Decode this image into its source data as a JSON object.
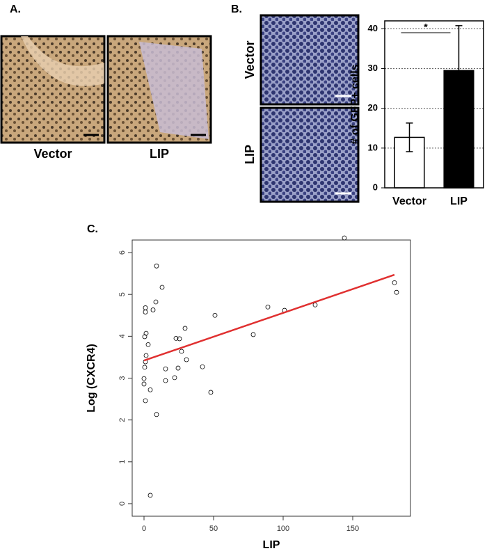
{
  "panel_a": {
    "label": "A.",
    "images": [
      "Vector",
      "LIP"
    ]
  },
  "panel_b": {
    "label": "B.",
    "images": [
      "Vector",
      "LIP"
    ]
  },
  "panel_c": {
    "label": "C."
  },
  "chart_data": [
    {
      "type": "bar",
      "ylabel": "# of GFP+ cells",
      "categories": [
        "Vector",
        "LIP"
      ],
      "values": [
        12.7,
        29.5
      ],
      "errors": [
        3.6,
        11.3
      ],
      "colors": [
        "#ffffff",
        "#000000"
      ],
      "ylim": [
        0,
        42
      ],
      "yticks": [
        0,
        10,
        20,
        30,
        40
      ],
      "grid": true,
      "annotation": "*"
    },
    {
      "type": "scatter",
      "xlabel": "LIP",
      "ylabel": "Log (CXCR4)",
      "x": [
        1,
        1,
        1.5,
        0.5,
        3,
        1.5,
        1,
        0.5,
        0,
        0,
        1,
        4.5,
        9,
        4.5,
        9,
        13,
        8.5,
        6.5,
        15.5,
        15.5,
        22,
        24.5,
        23,
        25.5,
        27,
        30.5,
        29.5,
        42,
        48,
        51,
        78.5,
        89,
        101,
        123,
        144,
        180,
        181.5
      ],
      "values": [
        4.68,
        4.58,
        4.07,
        3.99,
        3.8,
        3.54,
        3.39,
        3.26,
        2.99,
        2.86,
        2.46,
        2.72,
        2.13,
        0.2,
        5.68,
        5.17,
        4.82,
        4.63,
        3.22,
        2.94,
        3.01,
        3.24,
        3.95,
        3.94,
        3.64,
        3.44,
        4.19,
        3.27,
        2.66,
        4.5,
        4.04,
        4.7,
        4.62,
        4.75,
        6.35,
        5.28,
        5.05
      ],
      "fit": {
        "x": [
          0,
          180
        ],
        "values": [
          3.42,
          5.47
        ],
        "color": "#e03030"
      },
      "xlim": [
        -8.5,
        191.5
      ],
      "ylim": [
        -0.3,
        6.3
      ],
      "xticks": [
        0,
        50,
        100,
        150
      ],
      "yticks": [
        0,
        1,
        2,
        3,
        4,
        5,
        6
      ]
    }
  ]
}
